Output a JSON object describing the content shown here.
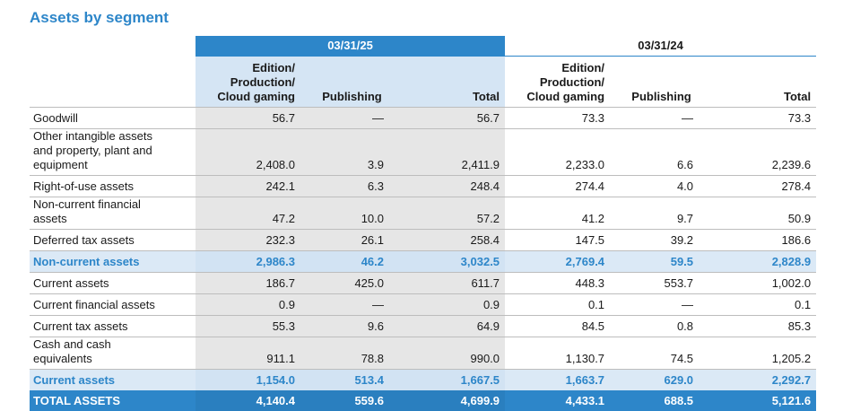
{
  "header": {
    "title": "Assets by segment"
  },
  "table": {
    "periods": [
      "03/31/25",
      "03/31/24"
    ],
    "columns": [
      "Edition/\nProduction/\nCloud gaming",
      "Publishing",
      "Total",
      "Edition/\nProduction/\nCloud gaming",
      "Publishing",
      "Total"
    ],
    "rows": [
      [
        "Goodwill",
        "56.7",
        "—",
        "56.7",
        "73.3",
        "—",
        "73.3"
      ],
      [
        "Other intangible assets and property, plant and equipment",
        "2,408.0",
        "3.9",
        "2,411.9",
        "2,233.0",
        "6.6",
        "2,239.6"
      ],
      [
        "Right-of-use assets",
        "242.1",
        "6.3",
        "248.4",
        "274.4",
        "4.0",
        "278.4"
      ],
      [
        "Non-current financial assets",
        "47.2",
        "10.0",
        "57.2",
        "41.2",
        "9.7",
        "50.9"
      ],
      [
        "Deferred tax assets",
        "232.3",
        "26.1",
        "258.4",
        "147.5",
        "39.2",
        "186.6"
      ],
      [
        "Non-current assets",
        "2,986.3",
        "46.2",
        "3,032.5",
        "2,769.4",
        "59.5",
        "2,828.9"
      ],
      [
        "Current assets",
        "186.7",
        "425.0",
        "611.7",
        "448.3",
        "553.7",
        "1,002.0"
      ],
      [
        "Current financial assets",
        "0.9",
        "—",
        "0.9",
        "0.1",
        "—",
        "0.1"
      ],
      [
        "Current tax assets",
        "55.3",
        "9.6",
        "64.9",
        "84.5",
        "0.8",
        "85.3"
      ],
      [
        "Cash and cash equivalents",
        "911.1",
        "78.8",
        "990.0",
        "1,130.7",
        "74.5",
        "1,205.2"
      ],
      [
        "Current assets",
        "1,154.0",
        "513.4",
        "1,667.5",
        "1,663.7",
        "629.0",
        "2,292.7"
      ],
      [
        "TOTAL ASSETS",
        "4,140.4",
        "559.6",
        "4,699.9",
        "4,433.1",
        "688.5",
        "5,121.6"
      ]
    ]
  }
}
